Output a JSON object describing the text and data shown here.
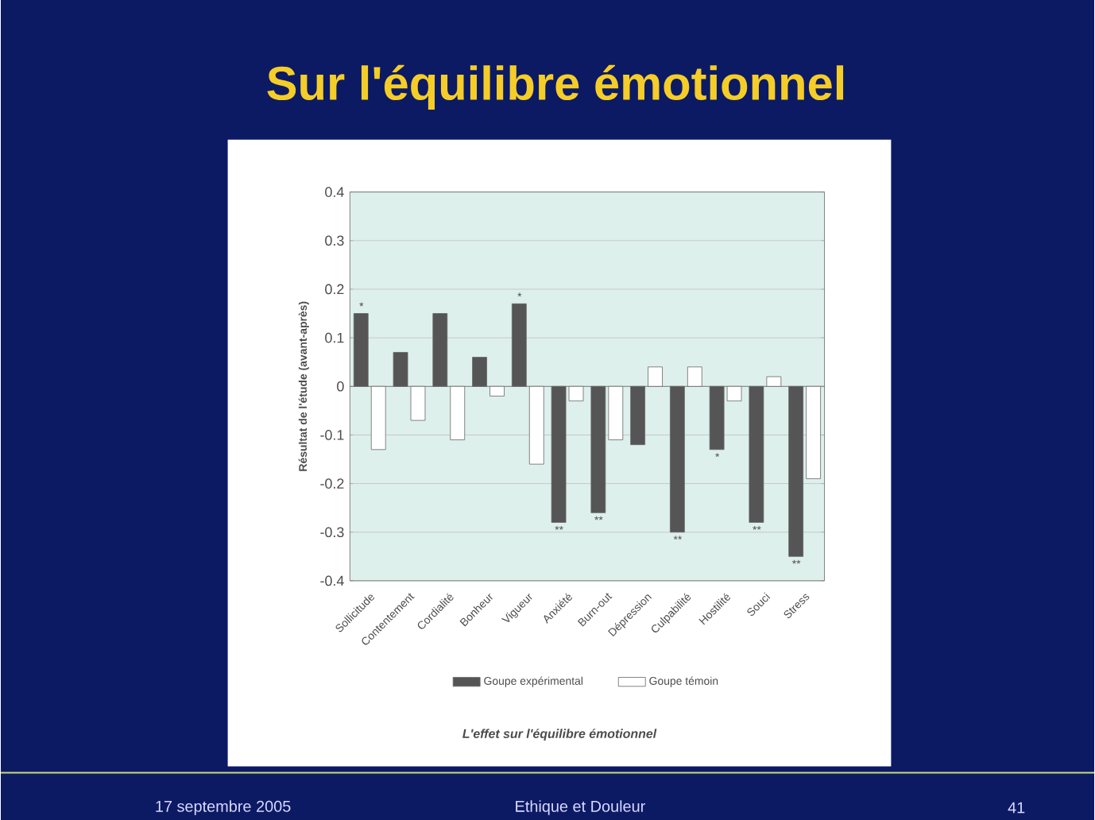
{
  "chart_data": {
    "type": "bar",
    "title": "Sur l'équilibre émotionnel",
    "ylabel": "Résultat de l'étude (avant-après)",
    "categories": [
      "Sollicitude",
      "Contentement",
      "Cordialité",
      "Bonheur",
      "Vigueur",
      "Anxiété",
      "Burn-out",
      "Dépression",
      "Culpabilité",
      "Hostilité",
      "Souci",
      "Stress"
    ],
    "series": [
      {
        "name": "Goupe expérimental",
        "color": "#555555",
        "values": [
          0.15,
          0.07,
          0.15,
          0.06,
          0.17,
          -0.28,
          -0.26,
          -0.12,
          -0.3,
          -0.13,
          -0.28,
          -0.35
        ]
      },
      {
        "name": "Goupe témoin",
        "color": "#ffffff",
        "values": [
          -0.13,
          -0.07,
          -0.11,
          -0.02,
          -0.16,
          -0.03,
          -0.11,
          0.04,
          0.04,
          -0.03,
          0.02,
          -0.19
        ]
      }
    ],
    "ylim": [
      -0.4,
      0.4
    ],
    "yticks": [
      -0.4,
      -0.3,
      -0.2,
      -0.1,
      0,
      0.1,
      0.2,
      0.3,
      0.4
    ],
    "grid": "y",
    "legend": "bottom",
    "annotations": [
      "L'effet sur l'équilibre émotionnel",
      "17 septembre 2005",
      "Ethique et Douleur",
      "41",
      {
        "text": "*",
        "x": "Sollicitude",
        "y": 0.15
      },
      {
        "text": "*",
        "x": "Vigueur",
        "y": 0.17
      },
      {
        "text": "**",
        "x": "Anxiété",
        "y": -0.28
      },
      {
        "text": "**",
        "x": "Burn-out",
        "y": -0.26
      },
      {
        "text": "**",
        "x": "Culpabilité",
        "y": -0.3
      },
      {
        "text": "*",
        "x": "Hostilité",
        "y": -0.13
      },
      {
        "text": "**",
        "x": "Souci",
        "y": -0.28
      },
      {
        "text": "**",
        "x": "Stress",
        "y": -0.35
      }
    ]
  }
}
